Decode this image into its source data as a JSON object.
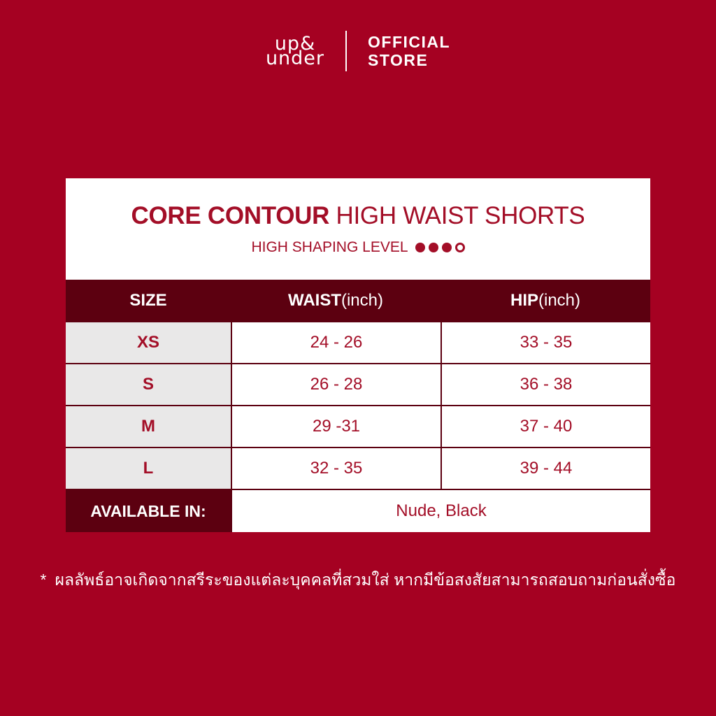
{
  "brand": {
    "logo_line1": "up&",
    "logo_line2": "under",
    "store_line1": "OFFICIAL",
    "store_line2": "STORE"
  },
  "product": {
    "title_bold": "CORE CONTOUR",
    "title_rest": " HIGH WAIST SHORTS",
    "shaping_label": "HIGH SHAPING LEVEL",
    "shaping_level": 3,
    "shaping_max": 4
  },
  "size_chart": {
    "header": [
      {
        "bold": "SIZE",
        "unit": ""
      },
      {
        "bold": "WAIST",
        "unit": " (inch)"
      },
      {
        "bold": "HIP",
        "unit": " (inch)"
      }
    ],
    "rows": [
      {
        "size": "XS",
        "waist": "24 - 26",
        "hip": "33 - 35"
      },
      {
        "size": "S",
        "waist": "26 - 28",
        "hip": "36 - 38"
      },
      {
        "size": "M",
        "waist": "29 -31",
        "hip": "37 - 40"
      },
      {
        "size": "L",
        "waist": "32 - 35",
        "hip": "39 - 44"
      }
    ],
    "available_label": "AVAILABLE IN:",
    "available_value": "Nude, Black"
  },
  "footnote": {
    "mark": "*",
    "text": "ผลลัพธ์อาจเกิดจากสรีระของแต่ละบุคคลที่สวมใส่ หากมีข้อสงสัยสามารถสอบถามก่อนสั่งซื้อ"
  },
  "colors": {
    "background_red": "#A50122",
    "dark_maroon": "#5C0010",
    "light_gray": "#E9E8E8",
    "accent_red_text": "#A30E27",
    "white": "#FFFFFF"
  }
}
